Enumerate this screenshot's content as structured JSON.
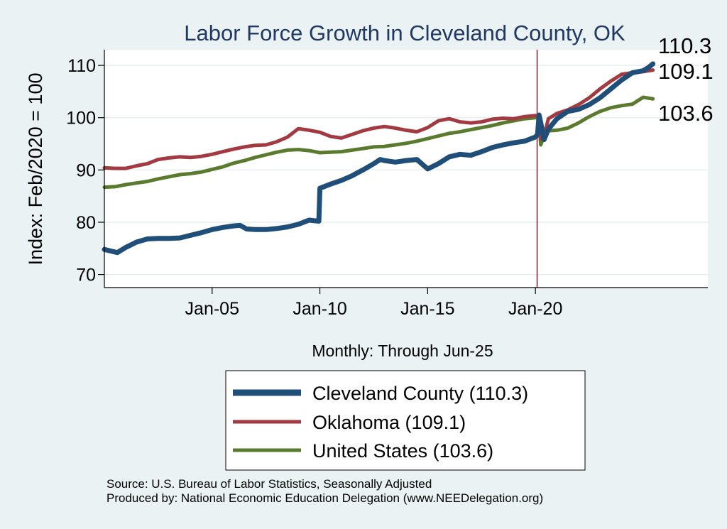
{
  "chart_data": {
    "type": "line",
    "title": "Labor Force Growth in Cleveland  County, OK",
    "xlabel": "Monthly: Through Jun-25",
    "ylabel": "Index: Feb/2020 = 100",
    "xlim": [
      2000.0,
      2028.0
    ],
    "ylim": [
      67.5,
      113
    ],
    "yticks": [
      70,
      80,
      90,
      100,
      110
    ],
    "xticks": [
      {
        "value": 2005.0,
        "label": "Jan-05"
      },
      {
        "value": 2010.0,
        "label": "Jan-10"
      },
      {
        "value": 2015.0,
        "label": "Jan-15"
      },
      {
        "value": 2020.0,
        "label": "Jan-20"
      }
    ],
    "reference_line": {
      "x": 2020.08,
      "color": "#a3203a"
    },
    "grid": true,
    "series": [
      {
        "name": "Cleveland  County",
        "legend_label": "Cleveland  County (110.3)",
        "end_label": "110.3",
        "color": "#1f4e79",
        "x": [
          2000.0,
          2000.3,
          2000.6,
          2001.0,
          2001.5,
          2002.0,
          2002.5,
          2003.0,
          2003.5,
          2004.0,
          2004.5,
          2005.0,
          2005.5,
          2006.0,
          2006.3,
          2006.6,
          2007.0,
          2007.5,
          2008.0,
          2008.5,
          2009.0,
          2009.5,
          2009.95,
          2010.0,
          2010.5,
          2011.0,
          2011.5,
          2012.0,
          2012.5,
          2012.8,
          2013.0,
          2013.5,
          2014.0,
          2014.5,
          2015.0,
          2015.5,
          2016.0,
          2016.5,
          2017.0,
          2017.5,
          2018.0,
          2018.5,
          2019.0,
          2019.5,
          2019.8,
          2020.0,
          2020.1,
          2020.17,
          2020.25,
          2020.4,
          2020.6,
          2021.0,
          2021.5,
          2022.0,
          2022.5,
          2023.0,
          2023.5,
          2024.0,
          2024.5,
          2025.0,
          2025.25,
          2025.45
        ],
        "values": [
          74.8,
          74.5,
          74.2,
          75.2,
          76.2,
          76.8,
          76.9,
          76.9,
          77.0,
          77.5,
          78.0,
          78.6,
          79.0,
          79.3,
          79.4,
          78.7,
          78.6,
          78.6,
          78.8,
          79.1,
          79.6,
          80.4,
          80.2,
          86.5,
          87.3,
          88.0,
          88.9,
          90.0,
          91.2,
          92.0,
          91.8,
          91.5,
          91.8,
          92.0,
          90.2,
          91.2,
          92.5,
          93.0,
          92.8,
          93.5,
          94.3,
          94.8,
          95.2,
          95.5,
          96.0,
          96.3,
          96.8,
          100.5,
          99.0,
          95.8,
          97.8,
          99.8,
          101.2,
          101.6,
          102.5,
          103.8,
          105.5,
          107.2,
          108.6,
          109.0,
          109.6,
          110.3
        ]
      },
      {
        "name": "Oklahoma",
        "legend_label": "Oklahoma (109.1)",
        "end_label": "109.1",
        "color": "#a33a42",
        "x": [
          2000.0,
          2000.5,
          2001.0,
          2001.5,
          2002.0,
          2002.5,
          2003.0,
          2003.5,
          2004.0,
          2004.5,
          2005.0,
          2005.5,
          2006.0,
          2006.5,
          2007.0,
          2007.5,
          2008.0,
          2008.5,
          2009.0,
          2009.5,
          2010.0,
          2010.5,
          2011.0,
          2011.5,
          2012.0,
          2012.5,
          2013.0,
          2013.5,
          2014.0,
          2014.5,
          2015.0,
          2015.5,
          2016.0,
          2016.5,
          2017.0,
          2017.5,
          2018.0,
          2018.5,
          2019.0,
          2019.5,
          2020.0,
          2020.1,
          2020.17,
          2020.25,
          2020.4,
          2020.6,
          2021.0,
          2021.5,
          2022.0,
          2022.5,
          2023.0,
          2023.5,
          2024.0,
          2024.5,
          2025.0,
          2025.45
        ],
        "values": [
          90.4,
          90.3,
          90.3,
          90.8,
          91.2,
          92.0,
          92.3,
          92.5,
          92.4,
          92.6,
          93.0,
          93.5,
          94.0,
          94.4,
          94.7,
          94.8,
          95.4,
          96.3,
          97.9,
          97.6,
          97.2,
          96.4,
          96.1,
          96.8,
          97.5,
          98.0,
          98.3,
          98.0,
          97.6,
          97.3,
          98.1,
          99.4,
          99.8,
          99.2,
          99.0,
          99.2,
          99.7,
          99.9,
          99.8,
          100.2,
          100.4,
          100.3,
          99.6,
          96.0,
          96.5,
          99.8,
          100.8,
          101.5,
          102.5,
          103.8,
          105.5,
          107.0,
          108.3,
          108.6,
          108.8,
          109.1
        ]
      },
      {
        "name": "United States",
        "legend_label": "United States (103.6)",
        "end_label": "103.6",
        "color": "#5a7a2e",
        "x": [
          2000.0,
          2000.5,
          2001.0,
          2001.5,
          2002.0,
          2002.5,
          2003.0,
          2003.5,
          2004.0,
          2004.5,
          2005.0,
          2005.5,
          2006.0,
          2006.5,
          2007.0,
          2007.5,
          2008.0,
          2008.5,
          2009.0,
          2009.5,
          2010.0,
          2010.5,
          2011.0,
          2011.5,
          2012.0,
          2012.5,
          2013.0,
          2013.5,
          2014.0,
          2014.5,
          2015.0,
          2015.5,
          2016.0,
          2016.5,
          2017.0,
          2017.5,
          2018.0,
          2018.5,
          2019.0,
          2019.5,
          2020.0,
          2020.08,
          2020.17,
          2020.25,
          2020.4,
          2020.6,
          2021.0,
          2021.5,
          2022.0,
          2022.5,
          2023.0,
          2023.5,
          2024.0,
          2024.5,
          2025.0,
          2025.45
        ],
        "values": [
          86.7,
          86.8,
          87.2,
          87.5,
          87.8,
          88.3,
          88.7,
          89.1,
          89.3,
          89.6,
          90.1,
          90.6,
          91.3,
          91.8,
          92.4,
          92.9,
          93.4,
          93.8,
          93.9,
          93.7,
          93.3,
          93.4,
          93.5,
          93.8,
          94.1,
          94.4,
          94.5,
          94.8,
          95.1,
          95.5,
          96.0,
          96.5,
          97.0,
          97.3,
          97.7,
          98.1,
          98.5,
          99.0,
          99.4,
          99.8,
          100.0,
          100.2,
          99.0,
          94.8,
          96.5,
          97.5,
          97.6,
          98.0,
          99.0,
          100.2,
          101.2,
          101.9,
          102.3,
          102.6,
          103.9,
          103.6
        ]
      }
    ],
    "source_lines": [
      "Source: U.S. Bureau of Labor Statistics, Seasonally Adjusted",
      "Produced by: National Economic Education Delegation (www.NEEDelegation.org)"
    ]
  }
}
